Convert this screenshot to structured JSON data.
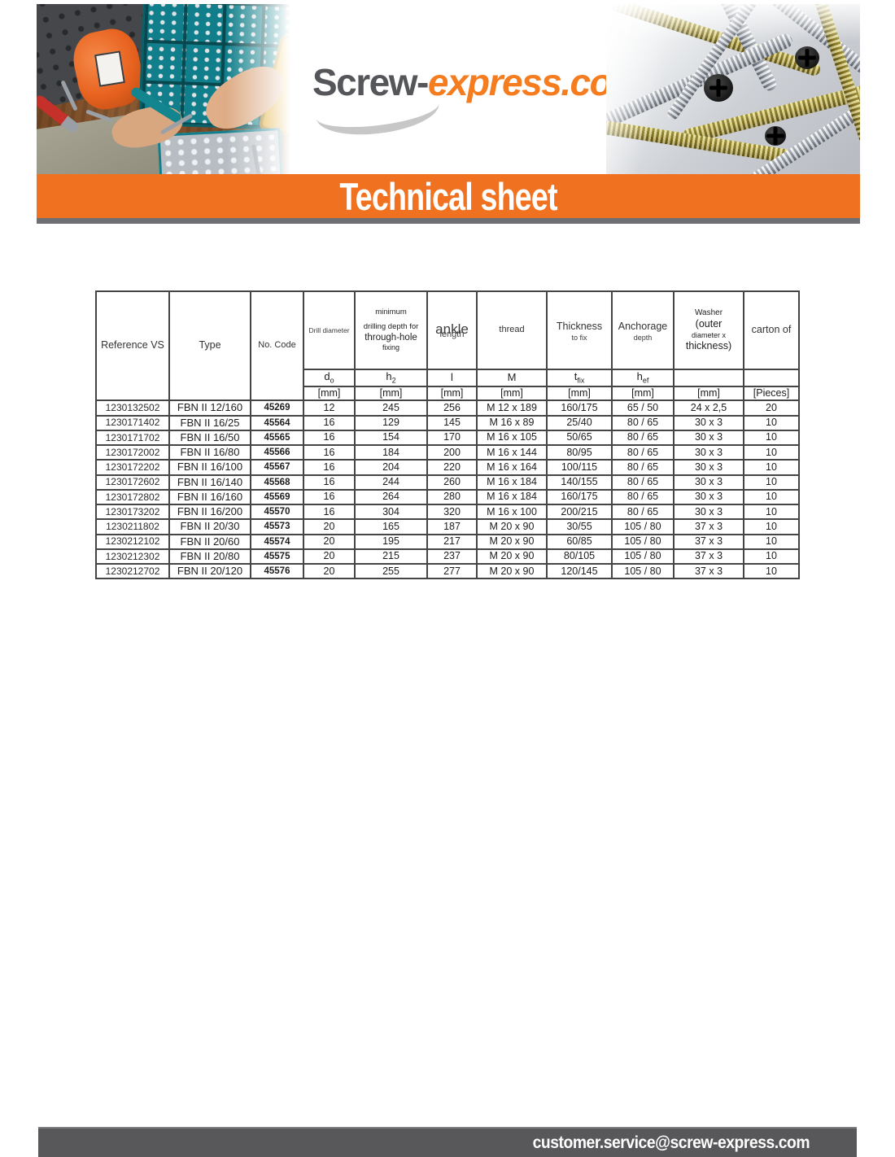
{
  "header": {
    "logo_part1": "Screw-",
    "logo_part2": "express.com",
    "banner_title": "Technical sheet"
  },
  "footer": {
    "email": "customer.service@screw-express.com"
  },
  "colors": {
    "banner_orange": "#f0711f",
    "logo_grey": "#55565a",
    "logo_orange": "#f57d1f",
    "footer_grey": "#58585a",
    "table_border": "#454545"
  },
  "table": {
    "header": {
      "reference": "Reference VS",
      "type": "Type",
      "code": "No. Code",
      "drill_diameter": "Drill diameter",
      "min_depth_line1": "minimum",
      "min_depth_line2": "drilling depth for",
      "min_depth_line3": "through-hole",
      "min_depth_line4": "fixing",
      "ankle": "ankle",
      "ankle_overlap": "length",
      "thread": "thread",
      "thickness": "Thickness",
      "thickness_sub": "to fix",
      "anchorage": "Anchorage",
      "anchorage_sub": "depth",
      "washer_line1": "Washer",
      "washer_line2": "(outer",
      "washer_line3": "diameter x",
      "washer_line4": "thickness)",
      "carton": "carton of"
    },
    "symbols": {
      "drill": "d",
      "drill_sub": "o",
      "depth": "h",
      "depth_sub": "2",
      "length": "l",
      "thread": "M",
      "thickness": "t",
      "thickness_sub": "fix",
      "anchorage": "h",
      "anchorage_sub": "ef"
    },
    "units": {
      "mm": "[mm]",
      "pieces": "[Pieces]"
    },
    "rows": [
      [
        "1230132502",
        "FBN II 12/160",
        "45269",
        "12",
        "245",
        "256",
        "M 12 x 189",
        "160/175",
        "65 / 50",
        "24 x 2,5",
        "20"
      ],
      [
        "1230171402",
        "FBN II 16/25",
        "45564",
        "16",
        "129",
        "145",
        "M 16 x 89",
        "25/40",
        "80 / 65",
        "30 x 3",
        "10"
      ],
      [
        "1230171702",
        "FBN II 16/50",
        "45565",
        "16",
        "154",
        "170",
        "M 16 x 105",
        "50/65",
        "80 / 65",
        "30 x 3",
        "10"
      ],
      [
        "1230172002",
        "FBN II 16/80",
        "45566",
        "16",
        "184",
        "200",
        "M 16 x 144",
        "80/95",
        "80 / 65",
        "30 x 3",
        "10"
      ],
      [
        "1230172202",
        "FBN II 16/100",
        "45567",
        "16",
        "204",
        "220",
        "M 16 x 164",
        "100/115",
        "80 / 65",
        "30 x 3",
        "10"
      ],
      [
        "1230172602",
        "FBN II 16/140",
        "45568",
        "16",
        "244",
        "260",
        "M 16 x 184",
        "140/155",
        "80 / 65",
        "30 x 3",
        "10"
      ],
      [
        "1230172802",
        "FBN II 16/160",
        "45569",
        "16",
        "264",
        "280",
        "M 16 x 184",
        "160/175",
        "80 / 65",
        "30 x 3",
        "10"
      ],
      [
        "1230173202",
        "FBN II 16/200",
        "45570",
        "16",
        "304",
        "320",
        "M 16 x 100",
        "200/215",
        "80 / 65",
        "30 x 3",
        "10"
      ],
      [
        "1230211802",
        "FBN II 20/30",
        "45573",
        "20",
        "165",
        "187",
        "M 20 x 90",
        "30/55",
        "105 / 80",
        "37 x 3",
        "10"
      ],
      [
        "1230212102",
        "FBN II 20/60",
        "45574",
        "20",
        "195",
        "217",
        "M 20 x 90",
        "60/85",
        "105 / 80",
        "37 x 3",
        "10"
      ],
      [
        "1230212302",
        "FBN II 20/80",
        "45575",
        "20",
        "215",
        "237",
        "M 20 x 90",
        "80/105",
        "105 / 80",
        "37 x 3",
        "10"
      ],
      [
        "1230212702",
        "FBN II 20/120",
        "45576",
        "20",
        "255",
        "277",
        "M 20 x 90",
        "120/145",
        "105 / 80",
        "37 x 3",
        "10"
      ]
    ]
  }
}
